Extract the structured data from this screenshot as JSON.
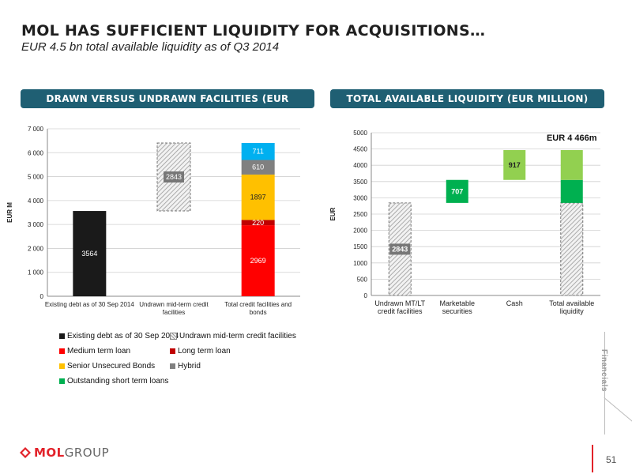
{
  "header": {
    "title": "MOL HAS SUFFICIENT LIQUIDITY FOR ACQUISITIONS…",
    "subtitle": "EUR 4.5 bn total available liquidity as of Q3 2014"
  },
  "banners": {
    "left": "DRAWN VERSUS UNDRAWN FACILITIES (EUR MILLION)",
    "right": "TOTAL AVAILABLE LIQUIDITY (EUR MILLION)"
  },
  "colors": {
    "banner": "#1f5f73",
    "existing_debt": "#1a1a1a",
    "medium_term_loan": "#ff0000",
    "long_term_loan": "#c00000",
    "senior_unsecured": "#ffc000",
    "hybrid": "#808080",
    "short_term_loans": "#00b0f0",
    "marketable": "#00b050",
    "cash": "#92d050",
    "logo_red": "#e2222a"
  },
  "chart_data": [
    {
      "type": "bar",
      "ylabel": "EUR M",
      "ylim": [
        0,
        7000
      ],
      "yticks": [
        "0",
        "1 000",
        "2 000",
        "3 000",
        "4 000",
        "5 000",
        "6 000",
        "7 000"
      ],
      "ytick_values": [
        0,
        1000,
        2000,
        3000,
        4000,
        5000,
        6000,
        7000
      ],
      "grid": true,
      "categories": [
        "Existing debt as of 30 Sep 2014",
        "Undrawn mid-term credit facilities",
        "Total credit facilities and bonds"
      ],
      "segments": [
        {
          "category": 0,
          "series": "Existing debt as of 30 Sep 2014",
          "base": 0,
          "value": 3564,
          "label": "3564",
          "color": "#1a1a1a"
        },
        {
          "category": 1,
          "series": "Undrawn mid-term credit facilities",
          "base": 3564,
          "value": 2843,
          "label": "2843",
          "color": "hatch"
        },
        {
          "category": 2,
          "series": "Medium term loan",
          "base": 0,
          "value": 2969,
          "label": "2969",
          "color": "#ff0000"
        },
        {
          "category": 2,
          "series": "Long term loan",
          "base": 2969,
          "value": 220,
          "label": "220",
          "color": "#c00000"
        },
        {
          "category": 2,
          "series": "Senior Unsecured Bonds",
          "base": 3189,
          "value": 1897,
          "label": "1897",
          "color": "#ffc000"
        },
        {
          "category": 2,
          "series": "Hybrid",
          "base": 5086,
          "value": 610,
          "label": "610",
          "color": "#808080"
        },
        {
          "category": 2,
          "series": "Outstanding short term loans",
          "base": 5696,
          "value": 711,
          "label": "711",
          "color": "#00b0f0"
        }
      ],
      "legend": [
        {
          "name": "Existing debt as of 30 Sep 2014",
          "color": "#1a1a1a"
        },
        {
          "name": "Undrawn mid-term credit facilities",
          "color": "hatch"
        },
        {
          "name": "Medium term loan",
          "color": "#ff0000"
        },
        {
          "name": "Long term loan",
          "color": "#c00000"
        },
        {
          "name": "Senior Unsecured Bonds",
          "color": "#ffc000"
        },
        {
          "name": "Hybrid",
          "color": "#808080"
        },
        {
          "name": "Outstanding short term loans",
          "color": "#00b050"
        }
      ],
      "legend_placement": "bottom"
    },
    {
      "type": "bar",
      "ylabel": "EUR",
      "ylim": [
        0,
        5000
      ],
      "yticks": [
        "0",
        "500",
        "1000",
        "1500",
        "2000",
        "2500",
        "3000",
        "3500",
        "4000",
        "4500",
        "5000"
      ],
      "ytick_values": [
        0,
        500,
        1000,
        1500,
        2000,
        2500,
        3000,
        3500,
        4000,
        4500,
        5000
      ],
      "grid": true,
      "categories": [
        "Undrawn MT/LT credit facilities",
        "Marketable securities",
        "Cash",
        "Total available liquidity"
      ],
      "segments": [
        {
          "category": 0,
          "base": 0,
          "value": 2843,
          "label": "2843",
          "color": "hatch"
        },
        {
          "category": 1,
          "base": 2843,
          "value": 707,
          "label": "707",
          "color": "#00b050"
        },
        {
          "category": 2,
          "base": 3550,
          "value": 917,
          "label": "917",
          "color": "#92d050"
        },
        {
          "category": 3,
          "base": 0,
          "value": 2843,
          "label": "",
          "color": "hatch"
        },
        {
          "category": 3,
          "base": 2843,
          "value": 707,
          "label": "",
          "color": "#00b050"
        },
        {
          "category": 3,
          "base": 3550,
          "value": 917,
          "label": "",
          "color": "#92d050"
        }
      ],
      "annotation": {
        "text": "EUR 4 466m",
        "category": 3,
        "value": 4466
      }
    }
  ],
  "sidebar": {
    "label": "Financials"
  },
  "footer": {
    "logo_a": "MOL",
    "logo_b": "GROUP",
    "page": "51"
  }
}
